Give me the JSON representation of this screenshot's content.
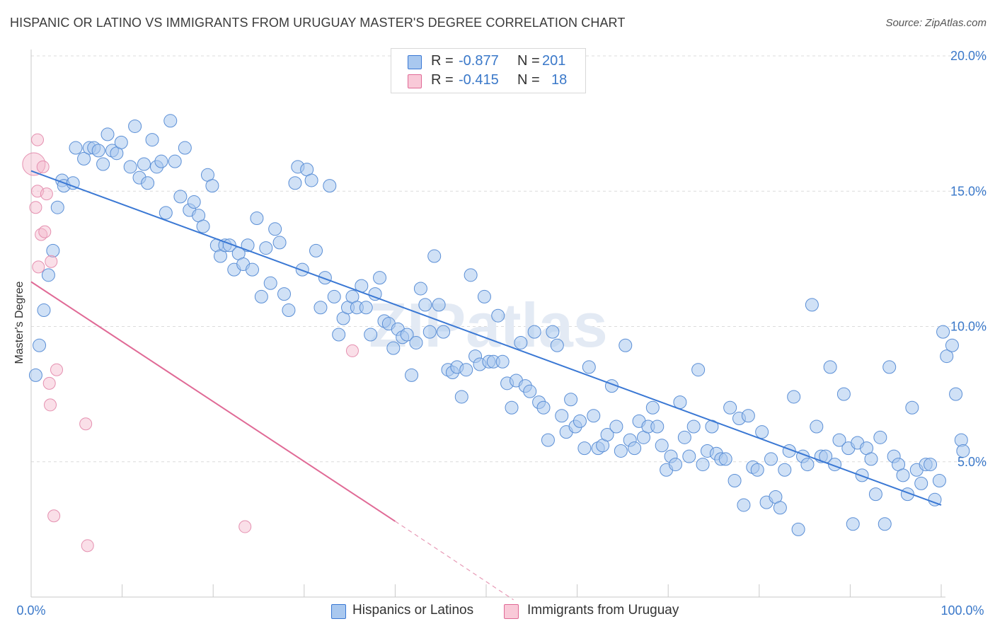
{
  "title": "HISPANIC OR LATINO VS IMMIGRANTS FROM URUGUAY MASTER'S DEGREE CORRELATION CHART",
  "source": "Source: ZipAtlas.com",
  "legend": {
    "rows": [
      {
        "r_label": "R =",
        "r_value": "-0.877",
        "n_label": "N =",
        "n_value": "201"
      },
      {
        "r_label": "R =",
        "r_value": "-0.415",
        "n_label": "N =",
        "n_value": "18"
      }
    ]
  },
  "bottom_legend": {
    "series1": "Hispanics or Latinos",
    "series2": "Immigrants from Uruguay"
  },
  "colors": {
    "blue": "#3a78d4",
    "blue_fill": "#a9c8ef",
    "pink": "#e06a96",
    "pink_fill": "#f5b8cc",
    "axis_text": "#3a78c9"
  },
  "chart_data": {
    "type": "scatter",
    "ylabel": "Master's Degree",
    "xlabel": "",
    "x_ticks": [
      "0.0%",
      "100.0%"
    ],
    "y_ticks": [
      "5.0%",
      "10.0%",
      "15.0%",
      "20.0%"
    ],
    "xlim": [
      0,
      100
    ],
    "ylim": [
      0,
      20.5
    ],
    "grid": "horizontal dashed",
    "watermark": "ZIPatlas",
    "series": [
      {
        "name": "Hispanics or Latinos",
        "color": "#3a78d4",
        "trend": [
          [
            0,
            15.75
          ],
          [
            100,
            3.4
          ]
        ],
        "points": [
          [
            0.5,
            8.2
          ],
          [
            0.9,
            9.3
          ],
          [
            1.4,
            10.6
          ],
          [
            1.9,
            11.9
          ],
          [
            2.4,
            12.8
          ],
          [
            2.9,
            14.4
          ],
          [
            3.4,
            15.4
          ],
          [
            3.6,
            15.2
          ],
          [
            4.6,
            15.3
          ],
          [
            4.9,
            16.6
          ],
          [
            5.8,
            16.2
          ],
          [
            6.4,
            16.6
          ],
          [
            6.9,
            16.6
          ],
          [
            7.4,
            16.5
          ],
          [
            7.9,
            16.0
          ],
          [
            8.4,
            17.1
          ],
          [
            8.9,
            16.5
          ],
          [
            9.4,
            16.4
          ],
          [
            9.9,
            16.8
          ],
          [
            10.9,
            15.9
          ],
          [
            11.4,
            17.4
          ],
          [
            11.9,
            15.5
          ],
          [
            12.4,
            16.0
          ],
          [
            12.8,
            15.3
          ],
          [
            13.3,
            16.9
          ],
          [
            13.8,
            15.9
          ],
          [
            14.3,
            16.1
          ],
          [
            14.8,
            14.2
          ],
          [
            15.3,
            17.6
          ],
          [
            15.8,
            16.1
          ],
          [
            16.4,
            14.8
          ],
          [
            16.9,
            16.6
          ],
          [
            17.4,
            14.3
          ],
          [
            17.9,
            14.6
          ],
          [
            18.4,
            14.1
          ],
          [
            18.9,
            13.7
          ],
          [
            19.4,
            15.6
          ],
          [
            19.9,
            15.2
          ],
          [
            20.4,
            13.0
          ],
          [
            20.8,
            12.6
          ],
          [
            21.3,
            13.0
          ],
          [
            21.8,
            13.0
          ],
          [
            22.3,
            12.1
          ],
          [
            22.8,
            12.7
          ],
          [
            23.3,
            12.3
          ],
          [
            23.8,
            13.0
          ],
          [
            24.3,
            12.1
          ],
          [
            24.8,
            14.0
          ],
          [
            25.3,
            11.1
          ],
          [
            25.8,
            12.9
          ],
          [
            26.3,
            11.6
          ],
          [
            26.8,
            13.6
          ],
          [
            27.3,
            13.1
          ],
          [
            27.8,
            11.2
          ],
          [
            28.3,
            10.6
          ],
          [
            29.0,
            15.3
          ],
          [
            29.3,
            15.9
          ],
          [
            29.8,
            12.1
          ],
          [
            30.3,
            15.8
          ],
          [
            30.8,
            15.4
          ],
          [
            31.3,
            12.8
          ],
          [
            31.8,
            10.7
          ],
          [
            32.3,
            11.8
          ],
          [
            32.8,
            15.2
          ],
          [
            33.3,
            11.1
          ],
          [
            33.8,
            9.7
          ],
          [
            34.3,
            10.3
          ],
          [
            34.8,
            10.7
          ],
          [
            35.3,
            11.1
          ],
          [
            35.8,
            10.7
          ],
          [
            36.3,
            11.5
          ],
          [
            36.8,
            10.7
          ],
          [
            37.3,
            9.7
          ],
          [
            37.8,
            11.2
          ],
          [
            38.3,
            11.8
          ],
          [
            38.8,
            10.2
          ],
          [
            39.3,
            10.1
          ],
          [
            39.8,
            9.2
          ],
          [
            40.3,
            9.9
          ],
          [
            40.8,
            9.6
          ],
          [
            41.3,
            9.7
          ],
          [
            41.8,
            8.2
          ],
          [
            42.3,
            9.4
          ],
          [
            42.8,
            11.4
          ],
          [
            43.3,
            10.8
          ],
          [
            43.8,
            9.8
          ],
          [
            44.3,
            12.6
          ],
          [
            44.8,
            10.8
          ],
          [
            45.3,
            9.8
          ],
          [
            45.8,
            8.4
          ],
          [
            46.3,
            8.3
          ],
          [
            46.8,
            8.5
          ],
          [
            47.3,
            7.4
          ],
          [
            47.8,
            8.4
          ],
          [
            48.3,
            11.9
          ],
          [
            48.8,
            8.9
          ],
          [
            49.3,
            8.6
          ],
          [
            49.8,
            11.1
          ],
          [
            50.3,
            8.7
          ],
          [
            50.8,
            8.7
          ],
          [
            51.3,
            10.4
          ],
          [
            51.8,
            8.7
          ],
          [
            52.3,
            7.9
          ],
          [
            52.8,
            7.0
          ],
          [
            53.3,
            8.0
          ],
          [
            53.8,
            9.4
          ],
          [
            54.3,
            7.8
          ],
          [
            54.8,
            7.6
          ],
          [
            55.3,
            9.8
          ],
          [
            55.8,
            7.2
          ],
          [
            56.3,
            7.0
          ],
          [
            56.8,
            5.8
          ],
          [
            57.3,
            9.8
          ],
          [
            57.8,
            9.3
          ],
          [
            58.3,
            6.7
          ],
          [
            58.8,
            6.1
          ],
          [
            59.3,
            7.3
          ],
          [
            59.8,
            6.3
          ],
          [
            60.3,
            6.5
          ],
          [
            60.8,
            5.5
          ],
          [
            61.3,
            8.5
          ],
          [
            61.8,
            6.7
          ],
          [
            62.3,
            5.5
          ],
          [
            62.8,
            5.6
          ],
          [
            63.3,
            6.0
          ],
          [
            63.8,
            7.8
          ],
          [
            64.3,
            6.3
          ],
          [
            64.8,
            5.4
          ],
          [
            65.3,
            9.3
          ],
          [
            65.8,
            5.8
          ],
          [
            66.3,
            5.5
          ],
          [
            66.8,
            6.5
          ],
          [
            67.3,
            5.9
          ],
          [
            67.8,
            6.3
          ],
          [
            68.3,
            7.0
          ],
          [
            68.8,
            6.3
          ],
          [
            69.3,
            5.6
          ],
          [
            69.8,
            4.7
          ],
          [
            70.3,
            5.2
          ],
          [
            70.8,
            4.9
          ],
          [
            71.3,
            7.2
          ],
          [
            71.8,
            5.9
          ],
          [
            72.3,
            5.2
          ],
          [
            72.8,
            6.3
          ],
          [
            73.3,
            8.4
          ],
          [
            73.8,
            4.9
          ],
          [
            74.3,
            5.4
          ],
          [
            74.8,
            6.3
          ],
          [
            75.3,
            5.3
          ],
          [
            75.8,
            5.1
          ],
          [
            76.3,
            5.1
          ],
          [
            76.8,
            7.0
          ],
          [
            77.3,
            4.3
          ],
          [
            77.8,
            6.6
          ],
          [
            78.3,
            3.4
          ],
          [
            78.8,
            6.7
          ],
          [
            79.3,
            4.8
          ],
          [
            79.8,
            4.7
          ],
          [
            80.3,
            6.1
          ],
          [
            80.8,
            3.5
          ],
          [
            81.3,
            5.1
          ],
          [
            81.8,
            3.7
          ],
          [
            82.3,
            3.3
          ],
          [
            82.8,
            4.7
          ],
          [
            83.3,
            5.4
          ],
          [
            83.8,
            7.4
          ],
          [
            84.3,
            2.5
          ],
          [
            84.8,
            5.2
          ],
          [
            85.3,
            4.9
          ],
          [
            85.8,
            10.8
          ],
          [
            86.3,
            6.3
          ],
          [
            86.8,
            5.2
          ],
          [
            87.3,
            5.2
          ],
          [
            87.8,
            8.5
          ],
          [
            88.3,
            4.9
          ],
          [
            88.8,
            5.8
          ],
          [
            89.3,
            7.5
          ],
          [
            89.8,
            5.5
          ],
          [
            90.3,
            2.7
          ],
          [
            90.8,
            5.7
          ],
          [
            91.3,
            4.5
          ],
          [
            91.8,
            5.5
          ],
          [
            92.3,
            5.1
          ],
          [
            92.8,
            3.8
          ],
          [
            93.3,
            5.9
          ],
          [
            93.8,
            2.7
          ],
          [
            94.3,
            8.5
          ],
          [
            94.8,
            5.2
          ],
          [
            95.3,
            4.9
          ],
          [
            95.8,
            4.5
          ],
          [
            96.3,
            3.8
          ],
          [
            96.8,
            7.0
          ],
          [
            97.3,
            4.7
          ],
          [
            97.8,
            4.2
          ],
          [
            98.3,
            4.9
          ],
          [
            98.8,
            4.9
          ],
          [
            99.3,
            3.6
          ],
          [
            99.8,
            4.3
          ],
          [
            100.2,
            9.8
          ],
          [
            100.6,
            8.9
          ],
          [
            101.2,
            9.3
          ],
          [
            101.6,
            7.5
          ],
          [
            102.2,
            5.8
          ],
          [
            102.4,
            5.4
          ]
        ]
      },
      {
        "name": "Immigrants from Uruguay",
        "color": "#e06a96",
        "trend": [
          [
            0,
            11.65
          ],
          [
            40,
            2.8
          ]
        ],
        "trend_dashed": [
          [
            40,
            2.8
          ],
          [
            53,
            -0.1
          ]
        ],
        "points": [
          [
            0.3,
            16.0
          ],
          [
            0.5,
            14.4
          ],
          [
            0.7,
            15.0
          ],
          [
            0.8,
            12.2
          ],
          [
            0.7,
            16.9
          ],
          [
            1.1,
            13.4
          ],
          [
            1.3,
            15.9
          ],
          [
            1.5,
            13.5
          ],
          [
            1.7,
            14.9
          ],
          [
            2.0,
            7.9
          ],
          [
            2.1,
            7.1
          ],
          [
            2.2,
            12.4
          ],
          [
            2.8,
            8.4
          ],
          [
            2.5,
            3.0
          ],
          [
            6.0,
            6.4
          ],
          [
            6.2,
            1.9
          ],
          [
            23.5,
            2.6
          ],
          [
            35.3,
            9.1
          ]
        ]
      }
    ]
  }
}
